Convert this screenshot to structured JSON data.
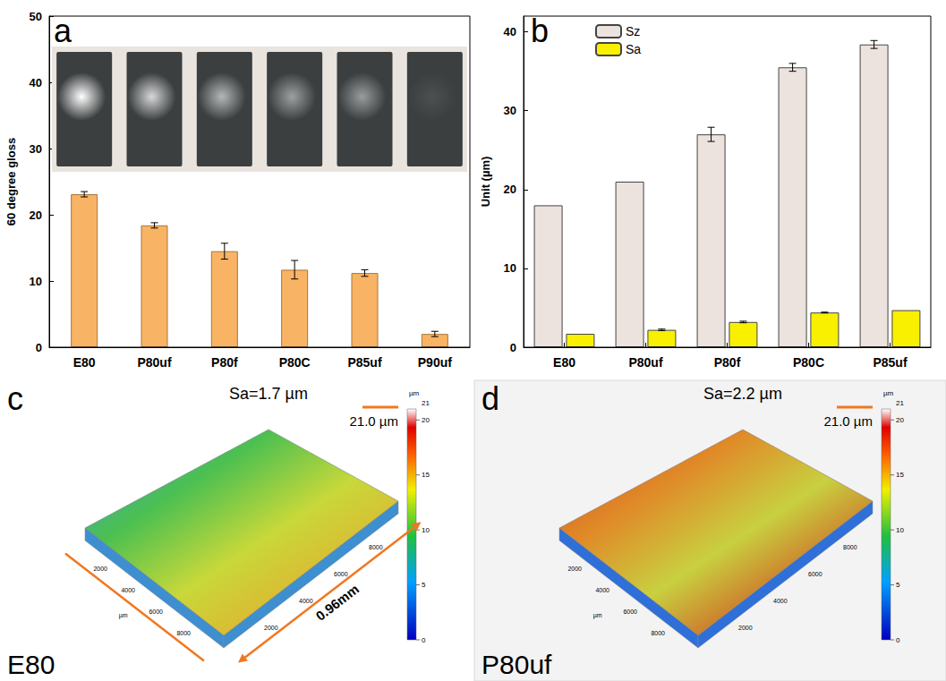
{
  "chart_data": [
    {
      "panel": "a",
      "type": "bar",
      "y_label": "60 degree gloss",
      "categories": [
        "E80",
        "P80uf",
        "P80f",
        "P80C",
        "P85uf",
        "P90uf"
      ],
      "values": [
        23.1,
        18.4,
        14.5,
        11.7,
        11.2,
        2.0
      ],
      "errors": [
        0.4,
        0.4,
        1.2,
        1.4,
        0.5,
        0.4
      ],
      "color": "#f8b464",
      "ylim": [
        0,
        50
      ],
      "yticks": [
        0,
        10,
        20,
        30,
        40,
        50
      ],
      "grid": false
    },
    {
      "panel": "b",
      "type": "bar",
      "y_label": "Unit (µm)",
      "categories": [
        "E80",
        "P80uf",
        "P80f",
        "P80C",
        "P85uf"
      ],
      "series": [
        {
          "name": "Sz",
          "color": "#ece2de",
          "values": [
            18.0,
            21.0,
            27.0,
            35.5,
            38.4
          ],
          "errors": [
            0,
            0,
            0.9,
            0.5,
            0.5
          ]
        },
        {
          "name": "Sa",
          "color": "#f9f000",
          "values": [
            1.7,
            2.2,
            3.2,
            4.4,
            4.7
          ],
          "errors": [
            0,
            0.1,
            0.1,
            0.05,
            0
          ]
        }
      ],
      "ylim": [
        0,
        42
      ],
      "yticks": [
        0,
        10,
        20,
        30,
        40
      ],
      "legend": "upper left",
      "grid": false
    }
  ],
  "surface_panels": [
    {
      "panel": "c",
      "sample": "E80",
      "annotation": "Sa=1.7 µm",
      "scale_label": "21.0 µm",
      "length_label": "0.96mm",
      "axis_unit": "µm",
      "axis_ticks": [
        2000,
        4000,
        6000,
        8000
      ],
      "colorbar": {
        "range": [
          0,
          21
        ],
        "ticks": [
          0,
          5,
          10,
          15,
          20
        ],
        "unit": "µm"
      }
    },
    {
      "panel": "d",
      "sample": "P80uf",
      "annotation": "Sa=2.2 µm",
      "scale_label": "21.0 µm",
      "axis_unit": "µm",
      "axis_ticks": [
        2000,
        4000,
        6000,
        8000
      ],
      "colorbar": {
        "range": [
          0,
          21
        ],
        "ticks": [
          0,
          5,
          10,
          15,
          20
        ],
        "unit": "µm"
      }
    }
  ]
}
